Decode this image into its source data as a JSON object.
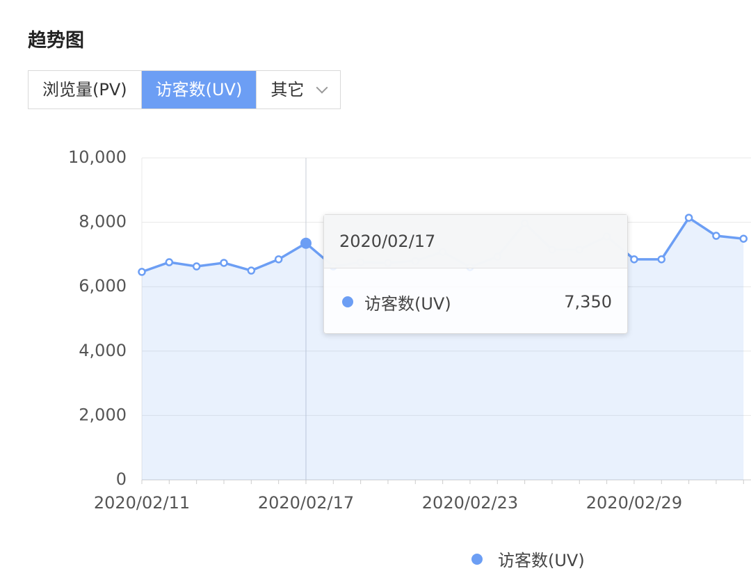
{
  "header": {
    "title": "趋势图"
  },
  "tabs": [
    "浏览量(PV)",
    "访客数(UV)",
    "其它"
  ],
  "chart_data": {
    "type": "line",
    "categories": [
      "2020/02/11",
      null,
      null,
      null,
      null,
      null,
      "2020/02/17",
      null,
      null,
      null,
      null,
      null,
      "2020/02/23",
      null,
      null,
      null,
      null,
      null,
      "2020/02/29",
      null,
      null,
      null,
      null
    ],
    "series": [
      {
        "name": "访客数(UV)",
        "color": "#6c9ef4",
        "values": [
          6460,
          6760,
          6630,
          6740,
          6500,
          6850,
          7350,
          6630,
          6760,
          6740,
          6800,
          7080,
          6610,
          6930,
          7970,
          7150,
          7150,
          7560,
          6850,
          6850,
          8140,
          7580,
          7490
        ]
      }
    ],
    "ylim": [
      0,
      10000
    ],
    "yticks": [
      0,
      {
        "value": 2000,
        "label": "2,000"
      },
      {
        "value": 4000,
        "label": "4,000"
      },
      {
        "value": 6000,
        "label": "6,000"
      },
      {
        "value": 8000,
        "label": "8,000"
      },
      {
        "value": 10000,
        "label": "10,000"
      }
    ],
    "grid": true,
    "area": true,
    "highlight": 6
  },
  "tooltip": {
    "title": "2020/02/17",
    "series": "访客数(UV)",
    "value": "7,350"
  }
}
